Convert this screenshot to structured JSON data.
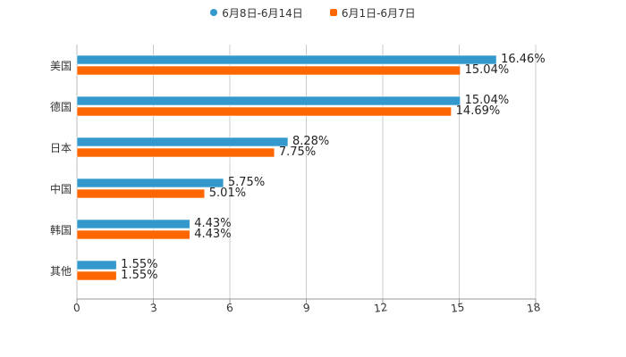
{
  "legend": [
    {
      "label": "6月8日-6月14日",
      "color": "#3399cc",
      "shape": "circle"
    },
    {
      "label": "6月1日-6月7日",
      "color": "#ff6600",
      "shape": "square"
    }
  ],
  "chart_data": {
    "type": "bar",
    "orientation": "horizontal",
    "title": "",
    "xlabel": "",
    "ylabel": "",
    "categories": [
      "美国",
      "德国",
      "日本",
      "中国",
      "韩国",
      "其他"
    ],
    "series": [
      {
        "name": "6月8日-6月14日",
        "color": "#3399cc",
        "values": [
          16.46,
          15.04,
          8.28,
          5.75,
          4.43,
          1.55
        ]
      },
      {
        "name": "6月1日-6月7日",
        "color": "#ff6600",
        "values": [
          15.04,
          14.69,
          7.75,
          5.01,
          4.43,
          1.55
        ]
      }
    ],
    "data_labels": [
      [
        "16.46%",
        "15.04%"
      ],
      [
        "15.04%",
        "14.69%"
      ],
      [
        "8.28%",
        "7.75%"
      ],
      [
        "5.75%",
        "5.01%"
      ],
      [
        "4.43%",
        "4.43%"
      ],
      [
        "1.55%",
        "1.55%"
      ]
    ],
    "xlim": [
      0,
      18
    ],
    "xticks": [
      "0",
      "3",
      "6",
      "9",
      "12",
      "15",
      "18"
    ],
    "grid": "vertical",
    "legend_position": "top"
  }
}
